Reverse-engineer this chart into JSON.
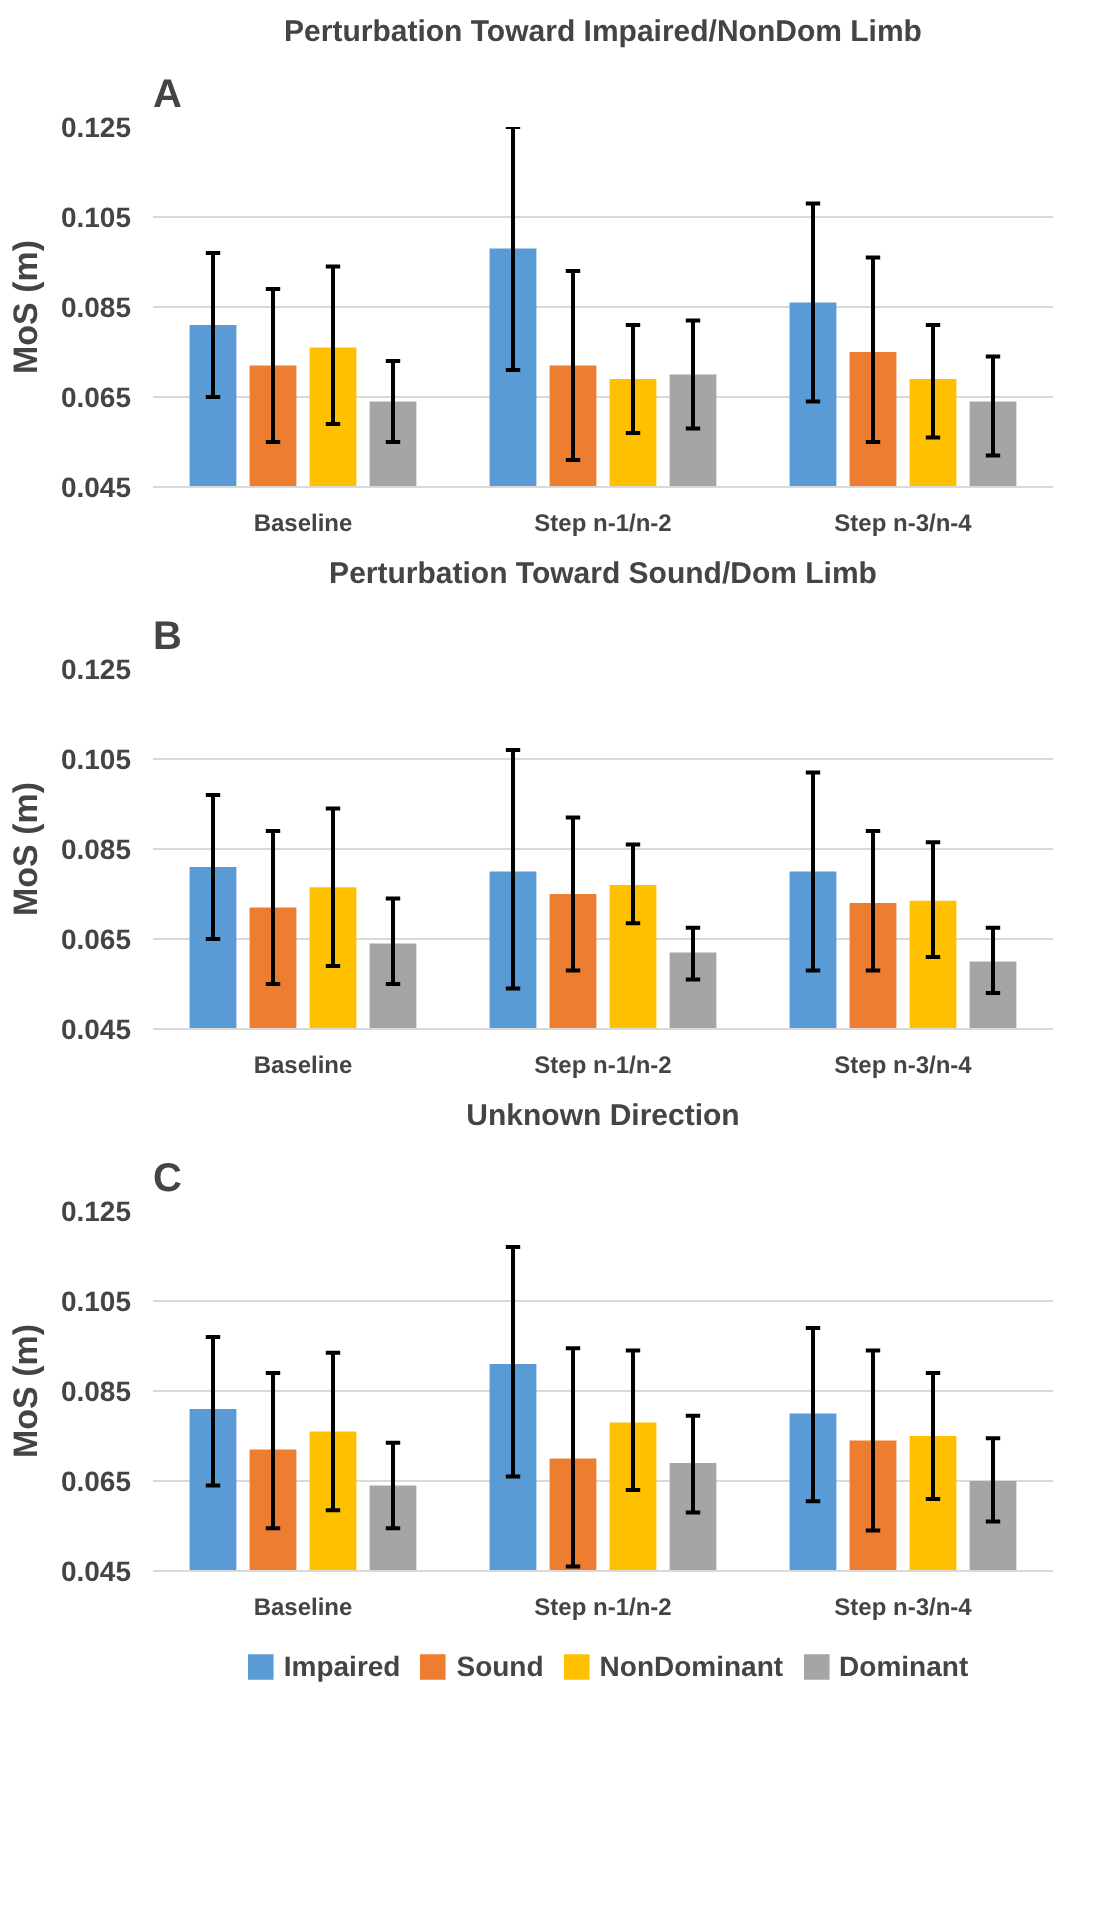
{
  "chart_data": [
    {
      "type": "bar",
      "title": "Perturbation Toward Impaired/NonDom Limb",
      "ylabel": "MoS (m)",
      "annotations": [
        "A"
      ],
      "categories": [
        "Baseline",
        "Step n-1/n-2",
        "Step n-3/n-4"
      ],
      "ylim": [
        0.045,
        0.125
      ],
      "yticks": [
        0.045,
        0.065,
        0.085,
        0.105,
        0.125
      ],
      "grid": "y",
      "series": [
        {
          "color": "#5b9bd5",
          "values": [
            0.081,
            0.098,
            0.086
          ],
          "errors": [
            [
              0.065,
              0.097
            ],
            [
              0.071,
              0.125
            ],
            [
              0.064,
              0.108
            ]
          ]
        },
        {
          "color": "#ed7d31",
          "values": [
            0.072,
            0.072,
            0.075
          ],
          "errors": [
            [
              0.055,
              0.089
            ],
            [
              0.051,
              0.093
            ],
            [
              0.055,
              0.096
            ]
          ]
        },
        {
          "color": "#ffc000",
          "values": [
            0.076,
            0.069,
            0.069
          ],
          "errors": [
            [
              0.059,
              0.094
            ],
            [
              0.057,
              0.081
            ],
            [
              0.056,
              0.081
            ]
          ]
        },
        {
          "color": "#a5a5a5",
          "values": [
            0.064,
            0.07,
            0.064
          ],
          "errors": [
            [
              0.055,
              0.073
            ],
            [
              0.058,
              0.082
            ],
            [
              0.052,
              0.074
            ]
          ]
        }
      ]
    },
    {
      "type": "bar",
      "title": "Perturbation Toward Sound/Dom Limb",
      "ylabel": "MoS (m)",
      "annotations": [
        "B"
      ],
      "categories": [
        "Baseline",
        "Step n-1/n-2",
        "Step n-3/n-4"
      ],
      "ylim": [
        0.045,
        0.125
      ],
      "yticks": [
        0.045,
        0.065,
        0.085,
        0.105,
        0.125
      ],
      "grid": "y",
      "series": [
        {
          "color": "#5b9bd5",
          "values": [
            0.081,
            0.08,
            0.08
          ],
          "errors": [
            [
              0.065,
              0.097
            ],
            [
              0.054,
              0.107
            ],
            [
              0.058,
              0.102
            ]
          ]
        },
        {
          "color": "#ed7d31",
          "values": [
            0.072,
            0.075,
            0.073
          ],
          "errors": [
            [
              0.055,
              0.089
            ],
            [
              0.058,
              0.092
            ],
            [
              0.058,
              0.089
            ]
          ]
        },
        {
          "color": "#ffc000",
          "values": [
            0.0765,
            0.077,
            0.0735
          ],
          "errors": [
            [
              0.059,
              0.094
            ],
            [
              0.0685,
              0.086
            ],
            [
              0.061,
              0.0865
            ]
          ]
        },
        {
          "color": "#a5a5a5",
          "values": [
            0.064,
            0.062,
            0.06
          ],
          "errors": [
            [
              0.055,
              0.074
            ],
            [
              0.056,
              0.0675
            ],
            [
              0.053,
              0.0675
            ]
          ]
        }
      ]
    },
    {
      "type": "bar",
      "title": "Unknown Direction",
      "ylabel": "MoS (m)",
      "annotations": [
        "C"
      ],
      "categories": [
        "Baseline",
        "Step n-1/n-2",
        "Step n-3/n-4"
      ],
      "ylim": [
        0.045,
        0.125
      ],
      "yticks": [
        0.045,
        0.065,
        0.085,
        0.105,
        0.125
      ],
      "grid": "y",
      "legend": "bottom",
      "series": [
        {
          "name": "Impaired",
          "color": "#5b9bd5",
          "values": [
            0.081,
            0.091,
            0.08
          ],
          "errors": [
            [
              0.064,
              0.097
            ],
            [
              0.066,
              0.117
            ],
            [
              0.0605,
              0.099
            ]
          ]
        },
        {
          "name": "Sound",
          "color": "#ed7d31",
          "values": [
            0.072,
            0.07,
            0.074
          ],
          "errors": [
            [
              0.0545,
              0.089
            ],
            [
              0.046,
              0.0945
            ],
            [
              0.054,
              0.094
            ]
          ]
        },
        {
          "name": "NonDominant",
          "color": "#ffc000",
          "values": [
            0.076,
            0.078,
            0.075
          ],
          "errors": [
            [
              0.0585,
              0.0935
            ],
            [
              0.063,
              0.094
            ],
            [
              0.061,
              0.089
            ]
          ]
        },
        {
          "name": "Dominant",
          "color": "#a5a5a5",
          "values": [
            0.064,
            0.069,
            0.065
          ],
          "errors": [
            [
              0.0545,
              0.0735
            ],
            [
              0.058,
              0.0795
            ],
            [
              0.056,
              0.0745
            ]
          ]
        }
      ]
    }
  ]
}
